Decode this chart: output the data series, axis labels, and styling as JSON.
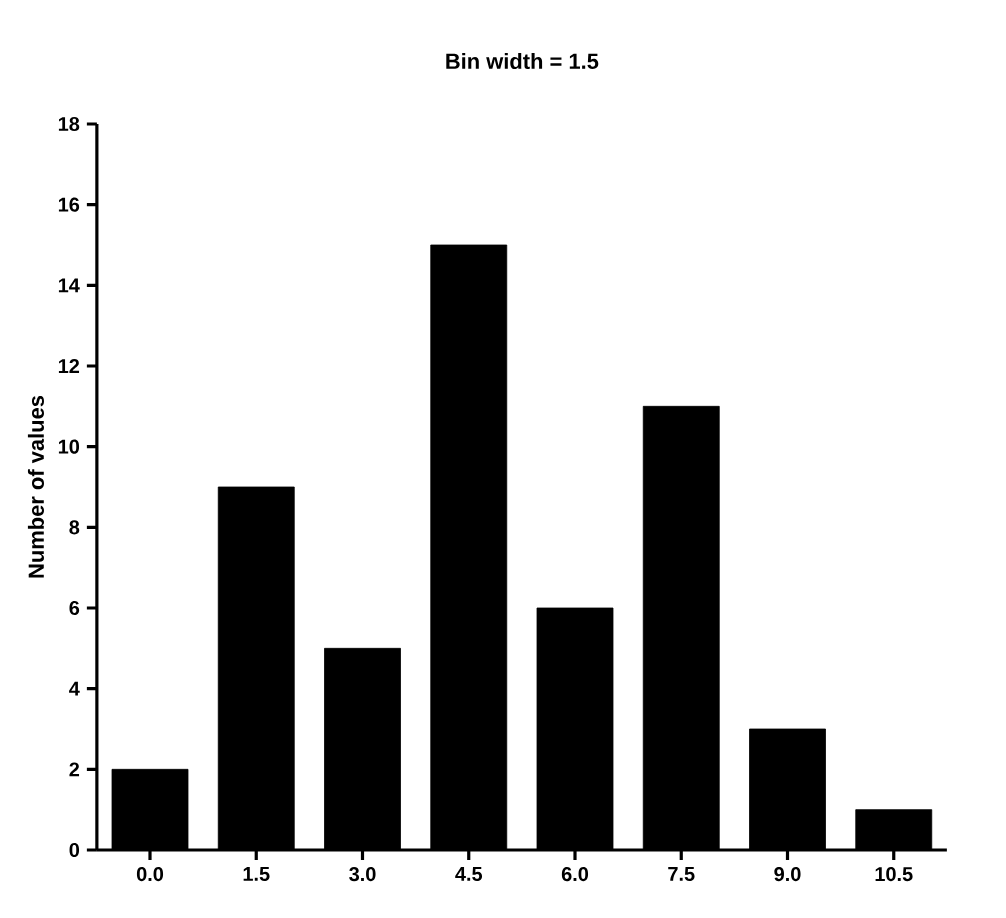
{
  "chart_data": {
    "type": "bar",
    "title": "Bin width = 1.5",
    "ylabel": "Number of values",
    "categories": [
      "0.0",
      "1.5",
      "3.0",
      "4.5",
      "6.0",
      "7.5",
      "9.0",
      "10.5"
    ],
    "values": [
      2,
      9,
      5,
      15,
      6,
      11,
      3,
      1
    ],
    "color": "#000000",
    "ylim": [
      0,
      18
    ],
    "yticks": [
      0,
      2,
      4,
      6,
      8,
      10,
      12,
      14,
      16,
      18
    ]
  }
}
